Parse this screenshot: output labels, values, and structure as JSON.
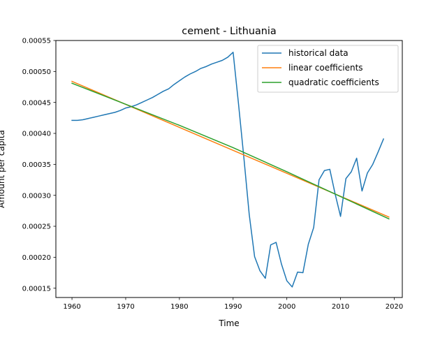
{
  "chart_data": {
    "type": "line",
    "title": "cement - Lithuania",
    "xlabel": "Time",
    "ylabel": "Amount per capita",
    "xlim": [
      1957,
      2021.5
    ],
    "ylim": [
      0.000135,
      0.00055
    ],
    "xticks": [
      1960,
      1970,
      1980,
      1990,
      2000,
      2010,
      2020
    ],
    "yticks": [
      0.00015,
      0.0002,
      0.00025,
      0.0003,
      0.00035,
      0.0004,
      0.00045,
      0.0005,
      0.00055
    ],
    "ytick_labels": [
      "0.00015",
      "0.00020",
      "0.00025",
      "0.00030",
      "0.00035",
      "0.00040",
      "0.00045",
      "0.00050",
      "0.00055"
    ],
    "grid": false,
    "legend_position": "top-right",
    "series": [
      {
        "name": "historical data",
        "color": "#1f77b4",
        "x": [
          1960,
          1961,
          1962,
          1963,
          1964,
          1965,
          1966,
          1967,
          1968,
          1969,
          1970,
          1971,
          1972,
          1973,
          1974,
          1975,
          1976,
          1977,
          1978,
          1979,
          1980,
          1981,
          1982,
          1983,
          1984,
          1985,
          1986,
          1987,
          1988,
          1989,
          1990,
          1991,
          1992,
          1993,
          1994,
          1995,
          1996,
          1997,
          1998,
          1999,
          2000,
          2001,
          2002,
          2003,
          2004,
          2005,
          2006,
          2007,
          2008,
          2009,
          2010,
          2011,
          2012,
          2013,
          2014,
          2015,
          2016,
          2017,
          2018
        ],
        "y": [
          0.000421,
          0.000421,
          0.000422,
          0.000424,
          0.000426,
          0.000428,
          0.00043,
          0.000432,
          0.000434,
          0.000437,
          0.000441,
          0.000443,
          0.000446,
          0.00045,
          0.000454,
          0.000458,
          0.000463,
          0.000468,
          0.000472,
          0.000479,
          0.000485,
          0.000491,
          0.000496,
          0.0005,
          0.000505,
          0.000508,
          0.000512,
          0.000515,
          0.000518,
          0.000523,
          0.000531,
          0.000448,
          0.000361,
          0.000269,
          0.000201,
          0.000178,
          0.000166,
          0.00022,
          0.000224,
          0.000189,
          0.000162,
          0.000152,
          0.000176,
          0.000175,
          0.000221,
          0.000248,
          0.000325,
          0.00034,
          0.000342,
          0.000302,
          0.000266,
          0.000327,
          0.000338,
          0.00036,
          0.000307,
          0.000336,
          0.00035,
          0.00037,
          0.000391
        ]
      },
      {
        "name": "linear coefficients",
        "color": "#ff7f0e",
        "x": [
          1960,
          2019
        ],
        "y": [
          0.000484,
          0.000265
        ]
      },
      {
        "name": "quadratic coefficients",
        "color": "#2ca02c",
        "x": [
          1960,
          1970,
          1980,
          1990,
          2000,
          2010,
          2019
        ],
        "y": [
          0.000481,
          0.000447,
          0.000413,
          0.000377,
          0.000338,
          0.000298,
          0.000262
        ]
      }
    ]
  }
}
